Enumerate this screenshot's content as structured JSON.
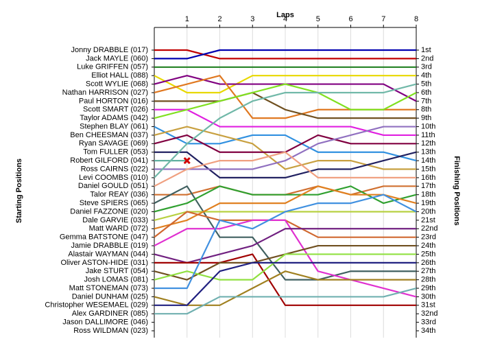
{
  "chart_data": {
    "type": "lap",
    "title": "Laps",
    "y_label_left": "Starting Positions",
    "y_label_right": "Finishing Positions",
    "xlim": [
      0,
      8
    ],
    "xticks": [
      1,
      2,
      3,
      4,
      5,
      6,
      7,
      8
    ],
    "ylim": [
      1,
      34
    ],
    "reversed": true,
    "grid": true,
    "finishing_labels": [
      "1st",
      "2nd",
      "3rd",
      "4th",
      "5th",
      "6th",
      "7th",
      "8th",
      "9th",
      "10th",
      "11th",
      "12th",
      "13th",
      "14th",
      "15th",
      "16th",
      "17th",
      "18th",
      "19th",
      "20th",
      "21st",
      "22nd",
      "23rd",
      "24th",
      "25th",
      "26th",
      "27th",
      "28th",
      "29th",
      "30th",
      "31st",
      "32nd",
      "33rd",
      "34th"
    ],
    "series": [
      {
        "name": "Jonny DRABBLE (017)",
        "color": "#c00000",
        "values": [
          1,
          1,
          2,
          2,
          2,
          2,
          2,
          2,
          2
        ]
      },
      {
        "name": "Jack MAYLE (060)",
        "color": "#0000b0",
        "values": [
          2,
          2,
          1,
          1,
          1,
          1,
          1,
          1,
          1
        ]
      },
      {
        "name": "Luke GRIFFEN (057)",
        "color": "#208020",
        "values": [
          3,
          3,
          3,
          3,
          3,
          3,
          3,
          3,
          3
        ]
      },
      {
        "name": "Elliot HALL (088)",
        "color": "#e8d800",
        "values": [
          4,
          6,
          6,
          4,
          4,
          4,
          4,
          4,
          4
        ]
      },
      {
        "name": "Scott WYLIE (068)",
        "color": "#800080",
        "values": [
          5,
          4,
          5,
          5,
          5,
          5,
          5,
          5,
          7
        ]
      },
      {
        "name": "Nathan HARRISON (027)",
        "color": "#e07820",
        "values": [
          6,
          5,
          4,
          9,
          9,
          8,
          8,
          8,
          8
        ]
      },
      {
        "name": "Paul HORTON (016)",
        "color": "#705020",
        "values": [
          7,
          7,
          7,
          6,
          8,
          9,
          9,
          9,
          9
        ]
      },
      {
        "name": "Scott SMART (026)",
        "color": "#e020e0",
        "values": [
          8,
          8,
          10,
          10,
          10,
          10,
          10,
          11,
          11
        ]
      },
      {
        "name": "Taylor ADAMS (042)",
        "color": "#80e020",
        "values": [
          9,
          8,
          7,
          6,
          5,
          6,
          8,
          8,
          6
        ]
      },
      {
        "name": "Stephen BLAY (061)",
        "color": "#3090e0",
        "values": [
          10,
          12,
          12,
          11,
          11,
          13,
          13,
          13,
          14
        ]
      },
      {
        "name": "Ben CHEESMAN (037)",
        "color": "#c8a040",
        "values": [
          11,
          10,
          11,
          12,
          15,
          14,
          14,
          15,
          15
        ]
      },
      {
        "name": "Ryan SAVAGE (069)",
        "color": "#800040",
        "values": [
          12,
          11,
          13,
          13,
          13,
          11,
          12,
          12,
          12
        ]
      },
      {
        "name": "Tom FULLER (053)",
        "color": "#202060",
        "values": [
          13,
          13,
          16,
          16,
          16,
          15,
          15,
          14,
          13
        ]
      },
      {
        "name": "Robert GILFORD (041)",
        "color": "#60b0a0",
        "values": [
          14,
          14,
          null,
          null,
          null,
          null,
          null,
          null,
          null
        ],
        "status": "retired"
      },
      {
        "name": "Ross CAIRNS (022)",
        "color": "#9070c0",
        "values": [
          15,
          15,
          15,
          15,
          14,
          12,
          11,
          10,
          10
        ]
      },
      {
        "name": "Levi COOMBS (010)",
        "color": "#70b8a8",
        "values": [
          16,
          12,
          9,
          7,
          6,
          6,
          6,
          6,
          5
        ]
      },
      {
        "name": "Daniel GOULD (051)",
        "color": "#f0a080",
        "values": [
          17,
          15,
          14,
          14,
          13,
          16,
          16,
          16,
          16
        ]
      },
      {
        "name": "Talor REAY (036)",
        "color": "#d07030",
        "values": [
          18,
          18,
          17,
          18,
          18,
          17,
          18,
          17,
          17
        ]
      },
      {
        "name": "Steve SPIERS (065)",
        "color": "#406060",
        "values": [
          19,
          17,
          23,
          23,
          28,
          28,
          27,
          27,
          27
        ]
      },
      {
        "name": "Daniel FAZZONE (020)",
        "color": "#30a030",
        "values": [
          20,
          19,
          17,
          18,
          18,
          18,
          17,
          19,
          18
        ]
      },
      {
        "name": "Dale GARVIE (033)",
        "color": "#b8d040",
        "values": [
          21,
          20,
          20,
          20,
          20,
          20,
          20,
          20,
          20
        ]
      },
      {
        "name": "Matt WARD (072)",
        "color": "#e08020",
        "values": [
          22,
          21,
          19,
          19,
          19,
          17,
          18,
          18,
          19
        ]
      },
      {
        "name": "Gemma BATSTONE (047)",
        "color": "#d06830",
        "values": [
          23,
          20,
          21,
          21,
          21,
          23,
          23,
          23,
          23
        ]
      },
      {
        "name": "Jamie DRABBLE (019)",
        "color": "#e030d0",
        "values": [
          24,
          22,
          22,
          21,
          21,
          27,
          28,
          29,
          30
        ]
      },
      {
        "name": "Alastair WAYMAN (044)",
        "color": "#702080",
        "values": [
          25,
          26,
          25,
          24,
          22,
          22,
          22,
          22,
          22
        ]
      },
      {
        "name": "Oliver ASTON-HIDE (031)",
        "color": "#a00000",
        "values": [
          26,
          26,
          26,
          25,
          31,
          31,
          31,
          31,
          31
        ]
      },
      {
        "name": "Jake STURT (054)",
        "color": "#705020",
        "values": [
          27,
          28,
          26,
          26,
          25,
          24,
          24,
          24,
          24
        ]
      },
      {
        "name": "Josh LOMAS (081)",
        "color": "#90e040",
        "values": [
          28,
          27,
          28,
          28,
          25,
          25,
          25,
          25,
          25
        ]
      },
      {
        "name": "Matt STONEMAN (073)",
        "color": "#4090e0",
        "values": [
          29,
          29,
          21,
          22,
          20,
          19,
          19,
          18,
          20
        ]
      },
      {
        "name": "Daniel DUNHAM (025)",
        "color": "#a08020",
        "values": [
          30,
          31,
          31,
          29,
          27,
          28,
          28,
          28,
          28
        ]
      },
      {
        "name": "Christopher WESEMAEL (029)",
        "color": "#202080",
        "values": [
          31,
          31,
          27,
          26,
          26,
          26,
          26,
          26,
          26
        ]
      },
      {
        "name": "Alex GARDINER (085)",
        "color": "#70b0b0",
        "values": [
          32,
          32,
          30,
          30,
          30,
          30,
          30,
          30,
          29
        ]
      },
      {
        "name": "Jason DALLIMORE (046)",
        "color": "#808080",
        "values": [
          null,
          null,
          null,
          null,
          null,
          null,
          null,
          null,
          null
        ]
      },
      {
        "name": "Ross WILDMAN (023)",
        "color": "#808080",
        "values": [
          null,
          null,
          null,
          null,
          null,
          null,
          null,
          null,
          null
        ]
      }
    ]
  }
}
